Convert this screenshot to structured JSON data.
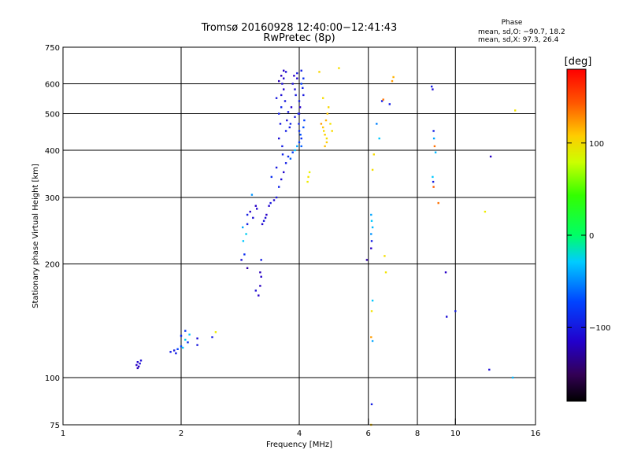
{
  "chart_data": {
    "type": "scatter",
    "title": "Tromsø 20160928 12:40:00−12:41:43",
    "subtitle": "RwPretec (8p)",
    "xlabel": "Frequency [MHz]",
    "ylabel": "Stationary phase Virtual Height [km]",
    "x_scale": "log2",
    "y_scale": "log",
    "xlim": [
      1,
      16
    ],
    "ylim": [
      75,
      750
    ],
    "x_ticks": [
      1,
      2,
      4,
      6,
      8,
      10,
      16
    ],
    "x_tick_labels": [
      "1",
      "2",
      "4",
      "6",
      "8",
      "10",
      "16"
    ],
    "y_ticks": [
      75,
      100,
      200,
      300,
      400,
      500,
      600,
      750
    ],
    "y_tick_labels": [
      "75",
      "100",
      "200",
      "300",
      "400",
      "500",
      "600",
      "750"
    ],
    "grid": true,
    "phase_info": {
      "heading": "Phase",
      "o_line": "mean, sd,O: −90.7, 18.2",
      "x_line": "mean, sd,X:  97.3, 26.4"
    },
    "colorbar": {
      "label": "[deg]",
      "range": [
        -180,
        180
      ],
      "ticks": [
        100,
        0,
        -100
      ],
      "tick_labels": [
        "100",
        "0",
        "−100"
      ]
    },
    "points": [
      [
        1.54,
        108,
        -120
      ],
      [
        1.55,
        110,
        -118
      ],
      [
        1.56,
        107,
        -122
      ],
      [
        1.57,
        109,
        -116
      ],
      [
        1.55,
        106,
        -125
      ],
      [
        1.58,
        111,
        -115
      ],
      [
        1.88,
        117,
        -110
      ],
      [
        1.92,
        118,
        -112
      ],
      [
        1.96,
        119,
        -100
      ],
      [
        2.0,
        121,
        -95
      ],
      [
        2.02,
        120,
        -60
      ],
      [
        2.05,
        126,
        -55
      ],
      [
        2.08,
        124,
        -105
      ],
      [
        1.94,
        116,
        -110
      ],
      [
        2.2,
        122,
        -112
      ],
      [
        2.0,
        129,
        -105
      ],
      [
        2.1,
        130,
        -60
      ],
      [
        2.45,
        132,
        110
      ],
      [
        2.2,
        127,
        -115
      ],
      [
        2.4,
        128,
        -110
      ],
      [
        2.05,
        133,
        -102
      ],
      [
        2.85,
        205,
        -115
      ],
      [
        2.9,
        212,
        -105
      ],
      [
        2.88,
        230,
        -60
      ],
      [
        2.93,
        240,
        -55
      ],
      [
        2.87,
        250,
        -70
      ],
      [
        2.95,
        255,
        -110
      ],
      [
        2.95,
        270,
        -110
      ],
      [
        3.0,
        275,
        -120
      ],
      [
        3.05,
        265,
        -115
      ],
      [
        3.1,
        285,
        -120
      ],
      [
        3.12,
        280,
        -118
      ],
      [
        3.03,
        305,
        -75
      ],
      [
        2.95,
        195,
        -130
      ],
      [
        3.1,
        170,
        -115
      ],
      [
        3.15,
        165,
        -120
      ],
      [
        3.18,
        175,
        -122
      ],
      [
        3.2,
        185,
        -118
      ],
      [
        3.18,
        190,
        -125
      ],
      [
        3.2,
        205,
        -110
      ],
      [
        3.45,
        295,
        -118
      ],
      [
        3.5,
        300,
        -112
      ],
      [
        3.55,
        320,
        -108
      ],
      [
        3.4,
        340,
        -105
      ],
      [
        3.6,
        335,
        -115
      ],
      [
        3.5,
        360,
        -112
      ],
      [
        3.65,
        350,
        -118
      ],
      [
        3.7,
        370,
        -110
      ],
      [
        3.75,
        385,
        -105
      ],
      [
        3.8,
        380,
        -90
      ],
      [
        3.85,
        395,
        -100
      ],
      [
        3.9,
        400,
        -60
      ],
      [
        3.95,
        410,
        -70
      ],
      [
        4.0,
        420,
        -100
      ],
      [
        4.05,
        430,
        -105
      ],
      [
        3.7,
        450,
        -110
      ],
      [
        3.8,
        470,
        -108
      ],
      [
        3.9,
        490,
        -112
      ],
      [
        4.0,
        500,
        -115
      ],
      [
        4.02,
        520,
        -120
      ],
      [
        4.0,
        540,
        -110
      ],
      [
        3.6,
        560,
        -115
      ],
      [
        3.65,
        580,
        -118
      ],
      [
        3.55,
        610,
        -125
      ],
      [
        3.6,
        630,
        -122
      ],
      [
        3.65,
        650,
        -120
      ],
      [
        3.7,
        645,
        -115
      ],
      [
        3.95,
        640,
        -112
      ],
      [
        4.05,
        650,
        -110
      ],
      [
        4.1,
        620,
        -105
      ],
      [
        4.05,
        600,
        -100
      ],
      [
        4.08,
        585,
        -108
      ],
      [
        4.1,
        560,
        -112
      ],
      [
        4.12,
        480,
        -100
      ],
      [
        4.1,
        460,
        -95
      ],
      [
        4.2,
        330,
        110
      ],
      [
        4.22,
        340,
        115
      ],
      [
        4.25,
        350,
        105
      ],
      [
        4.55,
        470,
        140
      ],
      [
        4.6,
        460,
        130
      ],
      [
        4.62,
        450,
        120
      ],
      [
        4.65,
        440,
        125
      ],
      [
        4.7,
        430,
        118
      ],
      [
        4.68,
        480,
        135
      ],
      [
        4.72,
        500,
        130
      ],
      [
        4.75,
        520,
        122
      ],
      [
        4.7,
        420,
        128
      ],
      [
        4.65,
        410,
        132
      ],
      [
        4.8,
        470,
        115
      ],
      [
        4.85,
        450,
        120
      ],
      [
        4.6,
        550,
        118
      ],
      [
        4.5,
        645,
        122
      ],
      [
        5.05,
        660,
        118
      ],
      [
        6.3,
        470,
        -80
      ],
      [
        6.4,
        430,
        -60
      ],
      [
        6.5,
        540,
        -110
      ],
      [
        6.55,
        545,
        150
      ],
      [
        6.8,
        530,
        -110
      ],
      [
        6.9,
        610,
        140
      ],
      [
        6.95,
        625,
        135
      ],
      [
        6.2,
        390,
        120
      ],
      [
        6.15,
        355,
        118
      ],
      [
        6.1,
        270,
        -70
      ],
      [
        6.12,
        260,
        -60
      ],
      [
        6.15,
        250,
        -65
      ],
      [
        6.1,
        240,
        -75
      ],
      [
        6.12,
        230,
        -110
      ],
      [
        6.1,
        220,
        -120
      ],
      [
        5.95,
        205,
        -130
      ],
      [
        6.15,
        160,
        -60
      ],
      [
        6.12,
        150,
        115
      ],
      [
        6.1,
        128,
        140
      ],
      [
        6.15,
        125,
        -70
      ],
      [
        6.12,
        85,
        -110
      ],
      [
        6.1,
        75,
        130
      ],
      [
        6.6,
        210,
        118
      ],
      [
        6.65,
        190,
        115
      ],
      [
        8.7,
        590,
        -110
      ],
      [
        8.75,
        580,
        -115
      ],
      [
        8.8,
        450,
        -110
      ],
      [
        8.82,
        430,
        -70
      ],
      [
        8.85,
        410,
        150
      ],
      [
        8.9,
        395,
        -65
      ],
      [
        8.75,
        340,
        -60
      ],
      [
        8.8,
        320,
        155
      ],
      [
        8.78,
        330,
        -110
      ],
      [
        9.05,
        290,
        150
      ],
      [
        9.45,
        190,
        -120
      ],
      [
        9.5,
        145,
        -115
      ],
      [
        12.3,
        385,
        -120
      ],
      [
        11.9,
        275,
        110
      ],
      [
        12.2,
        105,
        -115
      ],
      [
        14.0,
        100,
        -65
      ],
      [
        14.2,
        510,
        115
      ],
      [
        10.0,
        150,
        -110
      ],
      [
        3.5,
        550,
        -112
      ],
      [
        3.55,
        500,
        -110
      ],
      [
        3.6,
        520,
        -108
      ],
      [
        3.55,
        430,
        -115
      ],
      [
        3.58,
        470,
        -112
      ],
      [
        3.62,
        410,
        -110
      ],
      [
        3.63,
        390,
        -108
      ],
      [
        3.65,
        620,
        -118
      ],
      [
        3.62,
        600,
        -115
      ],
      [
        3.68,
        540,
        -112
      ],
      [
        3.72,
        480,
        -115
      ],
      [
        3.75,
        505,
        -112
      ],
      [
        3.78,
        460,
        -110
      ],
      [
        3.82,
        520,
        -118
      ],
      [
        3.85,
        600,
        -115
      ],
      [
        3.88,
        630,
        -120
      ],
      [
        3.9,
        580,
        -115
      ],
      [
        3.92,
        560,
        -112
      ],
      [
        3.95,
        620,
        -118
      ],
      [
        3.98,
        500,
        -110
      ],
      [
        3.99,
        470,
        -108
      ],
      [
        4.0,
        450,
        -105
      ],
      [
        4.03,
        440,
        -95
      ],
      [
        4.05,
        410,
        -90
      ],
      [
        3.3,
        270,
        -120
      ],
      [
        3.35,
        285,
        -118
      ],
      [
        3.38,
        290,
        -112
      ],
      [
        3.28,
        265,
        -115
      ],
      [
        3.22,
        255,
        -118
      ],
      [
        3.25,
        260,
        -112
      ]
    ]
  }
}
